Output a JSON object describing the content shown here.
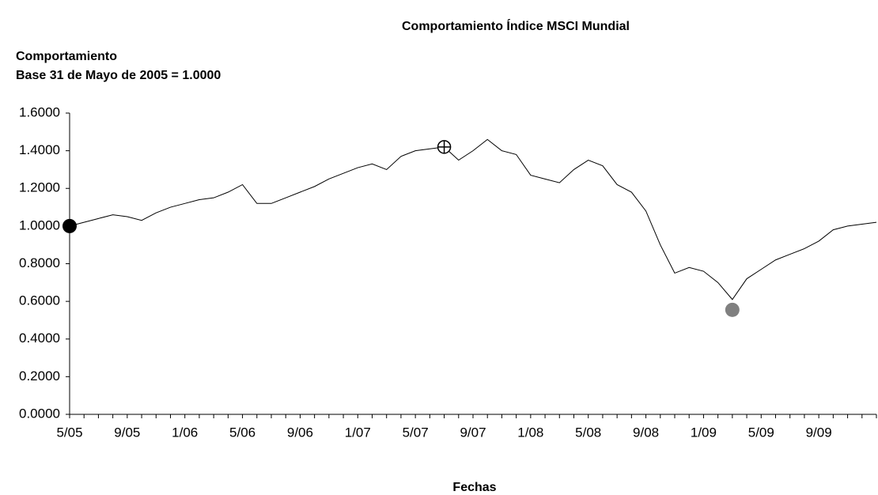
{
  "chart_data": {
    "type": "line",
    "title": "Comportamiento Índice MSCI Mundial",
    "y_label": [
      "Comportamiento",
      "Base 31 de Mayo de 2005 = 1.0000"
    ],
    "x_label": "Fechas",
    "categories": [
      "5/05",
      null,
      null,
      null,
      "9/05",
      null,
      null,
      null,
      "1/06",
      null,
      null,
      null,
      "5/06",
      null,
      null,
      null,
      "9/06",
      null,
      null,
      null,
      "1/07",
      null,
      null,
      null,
      "5/07",
      null,
      null,
      null,
      "9/07",
      null,
      null,
      null,
      "1/08",
      null,
      null,
      null,
      "5/08",
      null,
      null,
      null,
      "9/08",
      null,
      null,
      null,
      "1/09",
      null,
      null,
      null,
      "5/09",
      null,
      null,
      null,
      "9/09",
      null,
      null,
      null,
      null
    ],
    "series": [
      {
        "color": "#000000",
        "marker": "line",
        "values": [
          1.0,
          1.02,
          1.04,
          1.06,
          1.05,
          1.03,
          1.07,
          1.1,
          1.12,
          1.14,
          1.15,
          1.18,
          1.22,
          1.12,
          1.12,
          1.15,
          1.18,
          1.21,
          1.25,
          1.28,
          1.31,
          1.33,
          1.3,
          1.37,
          1.4,
          1.41,
          1.42,
          1.35,
          1.4,
          1.46,
          1.4,
          1.38,
          1.27,
          1.25,
          1.23,
          1.3,
          1.35,
          1.32,
          1.22,
          1.18,
          1.08,
          0.9,
          0.75,
          0.78,
          0.76,
          0.7,
          0.61,
          0.72,
          0.77,
          0.82,
          0.85,
          0.88,
          0.92,
          0.98,
          1.0,
          1.01,
          1.02
        ]
      },
      {
        "color": "#000000",
        "marker": "dot",
        "values": [
          1.0,
          null,
          null,
          null,
          null,
          null,
          null,
          null,
          null,
          null,
          null,
          null,
          null,
          null,
          null,
          null,
          null,
          null,
          null,
          null,
          null,
          null,
          null,
          null,
          null,
          null,
          null,
          null,
          null,
          null,
          null,
          null,
          null,
          null,
          null,
          null,
          null,
          null,
          null,
          null,
          null,
          null,
          null,
          null,
          null,
          null,
          null,
          null,
          null,
          null,
          null,
          null,
          null,
          null,
          null,
          null,
          null
        ]
      },
      {
        "color": "#000000",
        "marker": "crosshair",
        "values": [
          null,
          null,
          null,
          null,
          null,
          null,
          null,
          null,
          null,
          null,
          null,
          null,
          null,
          null,
          null,
          null,
          null,
          null,
          null,
          null,
          null,
          null,
          null,
          null,
          null,
          null,
          1.42,
          null,
          null,
          null,
          null,
          null,
          null,
          null,
          null,
          null,
          null,
          null,
          null,
          null,
          null,
          null,
          null,
          null,
          null,
          null,
          null,
          null,
          null,
          null,
          null,
          null,
          null,
          null,
          null,
          null,
          null
        ]
      },
      {
        "color": "#808080",
        "marker": "dot",
        "values": [
          null,
          null,
          null,
          null,
          null,
          null,
          null,
          null,
          null,
          null,
          null,
          null,
          null,
          null,
          null,
          null,
          null,
          null,
          null,
          null,
          null,
          null,
          null,
          null,
          null,
          null,
          null,
          null,
          null,
          null,
          null,
          null,
          null,
          null,
          null,
          null,
          null,
          null,
          null,
          null,
          null,
          null,
          null,
          null,
          null,
          null,
          0.555,
          null,
          null,
          null,
          null,
          null,
          null,
          null,
          null,
          null,
          null
        ]
      }
    ],
    "ylim": [
      0,
      1.6
    ],
    "yticks": [
      {
        "value": 0,
        "label": "0.0000"
      },
      {
        "value": 0.2,
        "label": "0.2000"
      },
      {
        "value": 0.4,
        "label": "0.4000"
      },
      {
        "value": 0.6,
        "label": "0.6000"
      },
      {
        "value": 0.8,
        "label": "0.8000"
      },
      {
        "value": 1.0,
        "label": "1.0000"
      },
      {
        "value": 1.2,
        "label": "1.2000"
      },
      {
        "value": 1.4,
        "label": "1.4000"
      },
      {
        "value": 1.6,
        "label": "1.6000"
      }
    ],
    "grid": false
  }
}
